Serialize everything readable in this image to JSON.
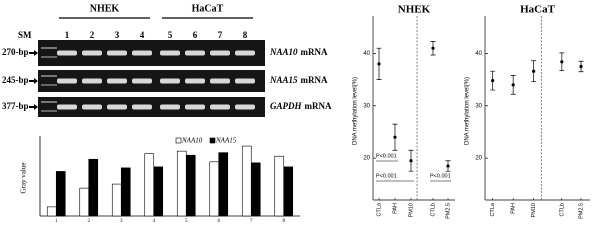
{
  "gel": {
    "marker": "SM",
    "groups": [
      {
        "label": "NHEK"
      },
      {
        "label": "HaCaT"
      }
    ],
    "lanes": [
      "1",
      "2",
      "3",
      "4",
      "5",
      "6",
      "7",
      "8"
    ],
    "rows": [
      {
        "size": "270-bp",
        "gene": "NAA10",
        "suffix": "mRNA"
      },
      {
        "size": "245-bp",
        "gene": "NAA15",
        "suffix": "mRNA"
      },
      {
        "size": "377-bp",
        "gene": "GAPDH",
        "suffix": "mRNA"
      }
    ]
  },
  "chart_data": [
    {
      "type": "bar",
      "y_label": "Gray value",
      "categories": [
        "1",
        "2",
        "3",
        "4",
        "5",
        "6",
        "7",
        "8"
      ],
      "series": [
        {
          "name": "NAA10",
          "color": "#ffffff",
          "values": [
            18,
            55,
            63,
            123,
            128,
            107,
            138,
            118
          ]
        },
        {
          "name": "NAA15",
          "color": "#000000",
          "values": [
            88,
            112,
            95,
            97,
            120,
            125,
            105,
            97
          ]
        }
      ],
      "ylim": [
        0,
        150
      ]
    },
    {
      "type": "errorbar",
      "title": "NHEK",
      "y_label": "DNA methylation level(%)",
      "categories": [
        "CTLa",
        "PAH",
        "PM10",
        "CTLb",
        "PM2.5"
      ],
      "values": [
        38,
        24,
        19.5,
        41,
        18.5
      ],
      "errors": [
        3,
        2.5,
        2,
        1.3,
        1
      ],
      "ylim": [
        12,
        46
      ],
      "yticks": [
        20,
        30,
        40
      ],
      "separator_after": 2,
      "annotations": [
        "P<0.001",
        "P<0.001",
        "P<0.001"
      ]
    },
    {
      "type": "errorbar",
      "title": "HaCaT",
      "y_label": "DNA methylation level(%)",
      "categories": [
        "CTLa",
        "PAH",
        "PM10",
        "CTLb",
        "PM2.5"
      ],
      "values": [
        34.8,
        34,
        36.6,
        38.4,
        37.5
      ],
      "errors": [
        1.8,
        1.8,
        2,
        1.7,
        1
      ],
      "ylim": [
        12,
        46
      ],
      "yticks": [
        20,
        30,
        40
      ],
      "separator_after": 2
    }
  ]
}
